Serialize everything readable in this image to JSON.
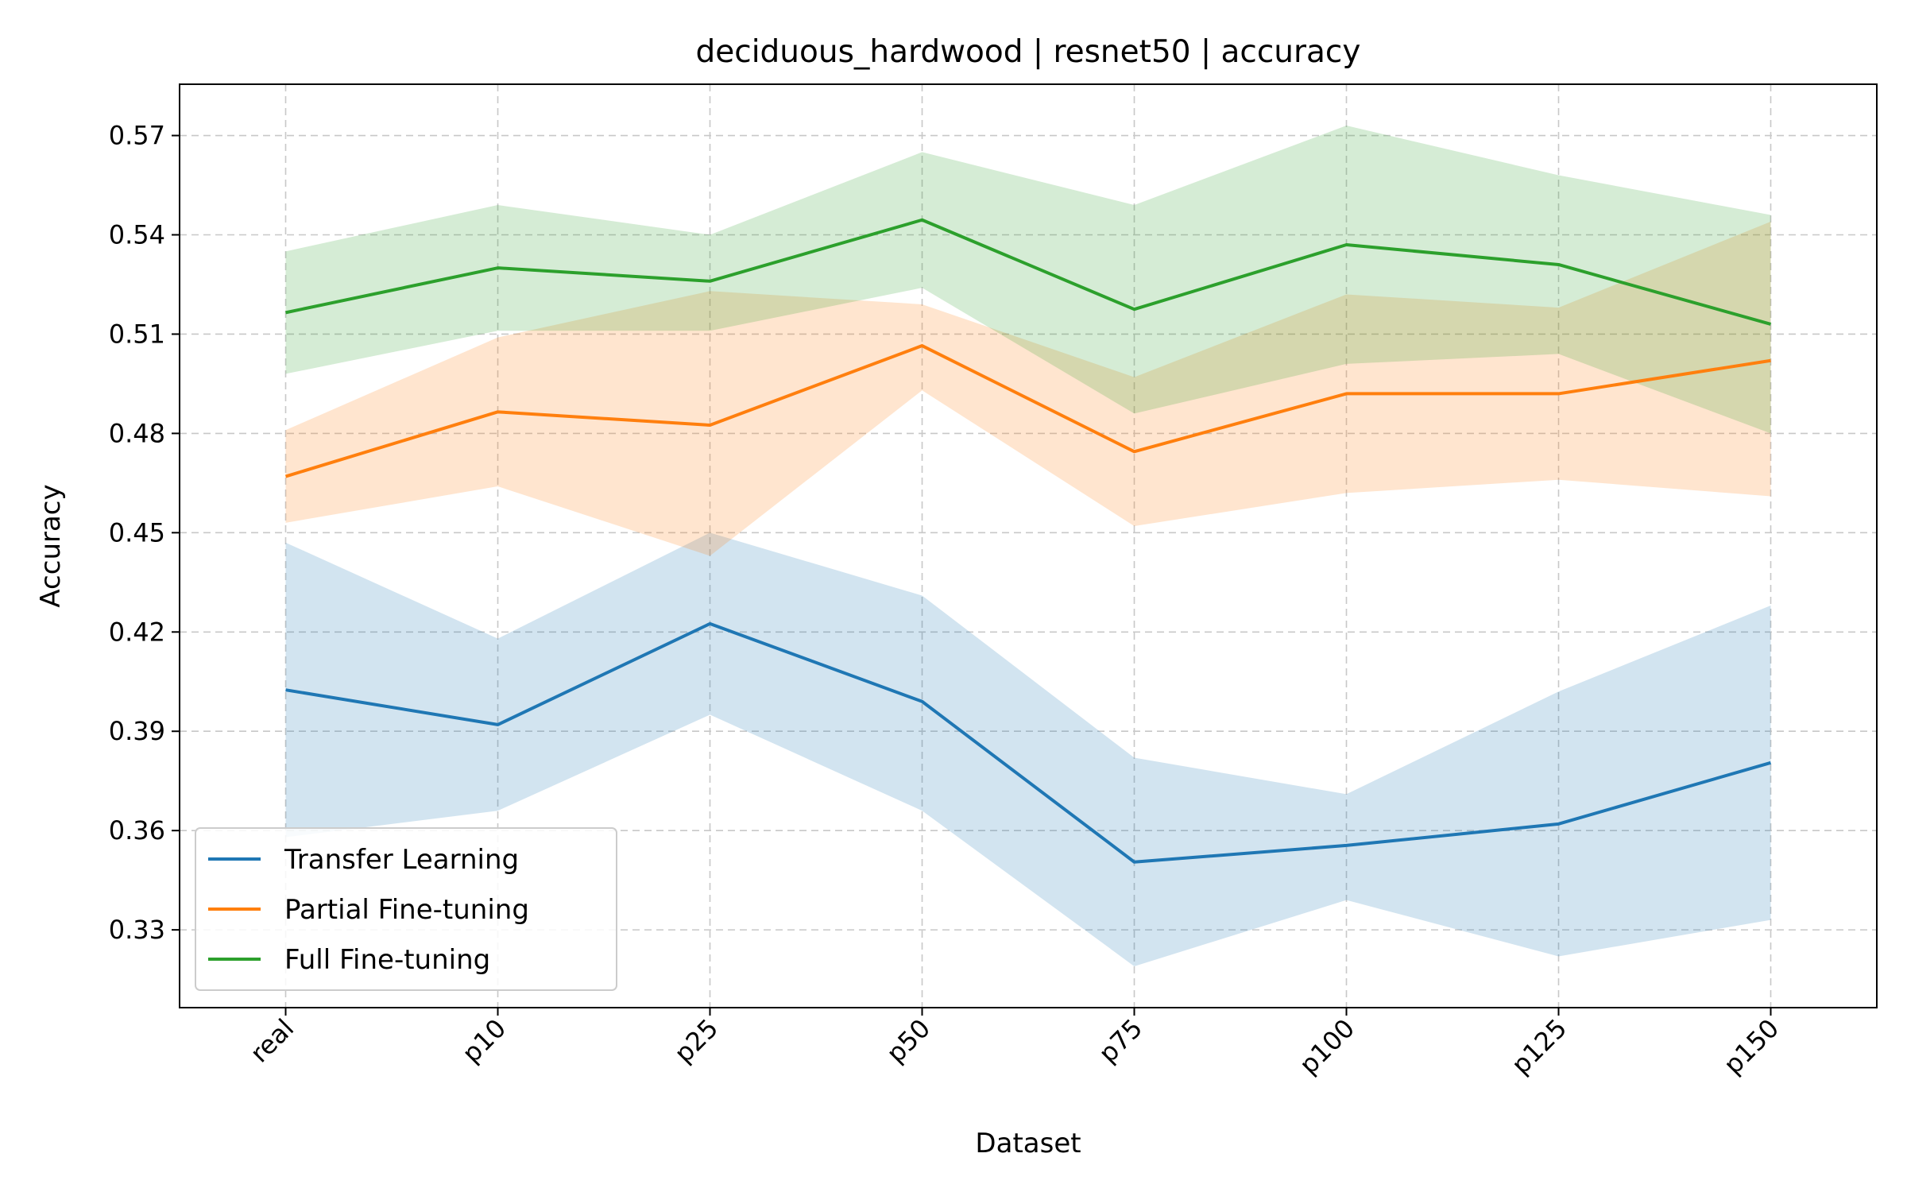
{
  "chart_data": {
    "type": "line",
    "title": "deciduous_hardwood | resnet50 | accuracy",
    "xlabel": "Dataset",
    "ylabel": "Accuracy",
    "categories": [
      "real",
      "p10",
      "p25",
      "p50",
      "p75",
      "p100",
      "p125",
      "p150"
    ],
    "ylim": [
      0.3065,
      0.5855
    ],
    "yticks": [
      0.33,
      0.36,
      0.39,
      0.42,
      0.45,
      0.48,
      0.51,
      0.54,
      0.57
    ],
    "ytick_labels": [
      "0.33",
      "0.36",
      "0.39",
      "0.42",
      "0.45",
      "0.48",
      "0.51",
      "0.54",
      "0.57"
    ],
    "grid": true,
    "legend_position": "lower-left",
    "series": [
      {
        "name": "Transfer Learning",
        "color": "#1f77b4",
        "values": [
          0.4025,
          0.392,
          0.4225,
          0.399,
          0.3505,
          0.3555,
          0.362,
          0.3805
        ],
        "lower": [
          0.358,
          0.366,
          0.395,
          0.366,
          0.319,
          0.339,
          0.322,
          0.333
        ],
        "upper": [
          0.447,
          0.418,
          0.45,
          0.431,
          0.382,
          0.371,
          0.402,
          0.428
        ]
      },
      {
        "name": "Partial Fine-tuning",
        "color": "#ff7f0e",
        "values": [
          0.467,
          0.4865,
          0.4825,
          0.5065,
          0.4745,
          0.492,
          0.492,
          0.502
        ],
        "lower": [
          0.453,
          0.464,
          0.443,
          0.493,
          0.452,
          0.462,
          0.466,
          0.461
        ],
        "upper": [
          0.481,
          0.509,
          0.523,
          0.519,
          0.497,
          0.522,
          0.518,
          0.544
        ]
      },
      {
        "name": "Full Fine-tuning",
        "color": "#2ca02c",
        "values": [
          0.5165,
          0.53,
          0.526,
          0.5445,
          0.5175,
          0.537,
          0.531,
          0.513
        ],
        "lower": [
          0.498,
          0.511,
          0.511,
          0.524,
          0.486,
          0.501,
          0.504,
          0.48
        ],
        "upper": [
          0.535,
          0.549,
          0.54,
          0.565,
          0.549,
          0.573,
          0.558,
          0.546
        ]
      }
    ]
  }
}
